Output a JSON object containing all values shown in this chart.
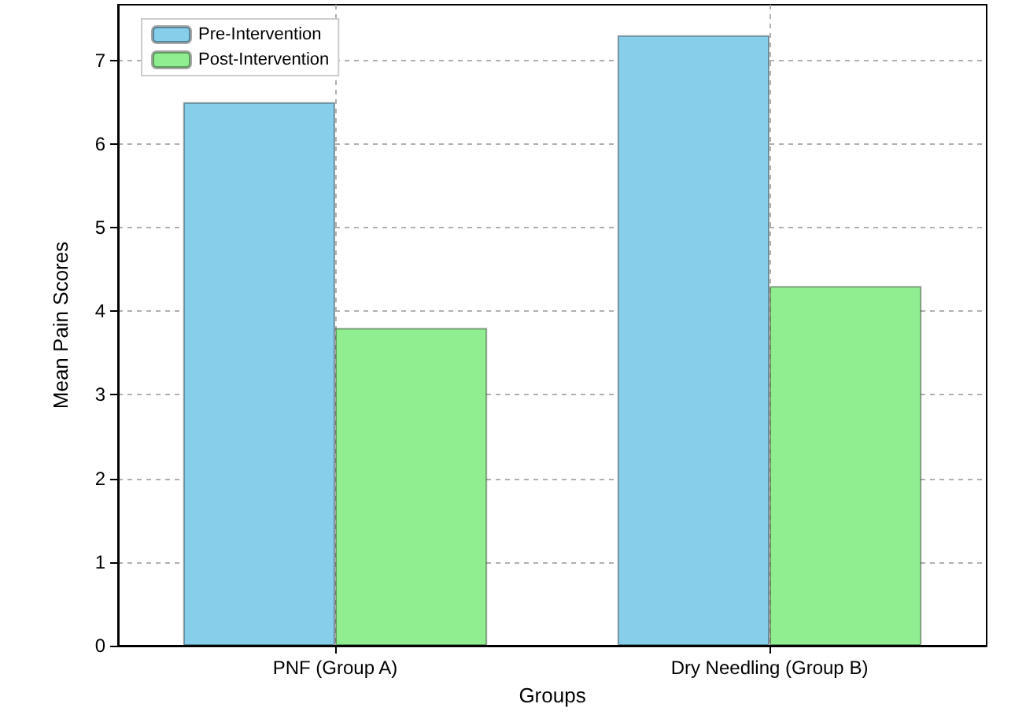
{
  "chart_data": {
    "type": "bar",
    "xlabel": "Groups",
    "ylabel": "Mean Pain Scores",
    "categories": [
      "PNF (Group A)",
      "Dry Needling (Group B)"
    ],
    "series": [
      {
        "name": "Pre-Intervention",
        "color": "#87ceeb",
        "values": [
          6.5,
          7.3
        ]
      },
      {
        "name": "Post-Intervention",
        "color": "#90ee90",
        "values": [
          3.8,
          4.3
        ]
      }
    ],
    "ylim": [
      0,
      7.665
    ],
    "yticks": [
      0,
      1,
      2,
      3,
      4,
      5,
      6,
      7
    ],
    "grid": true,
    "legend": "top left"
  }
}
